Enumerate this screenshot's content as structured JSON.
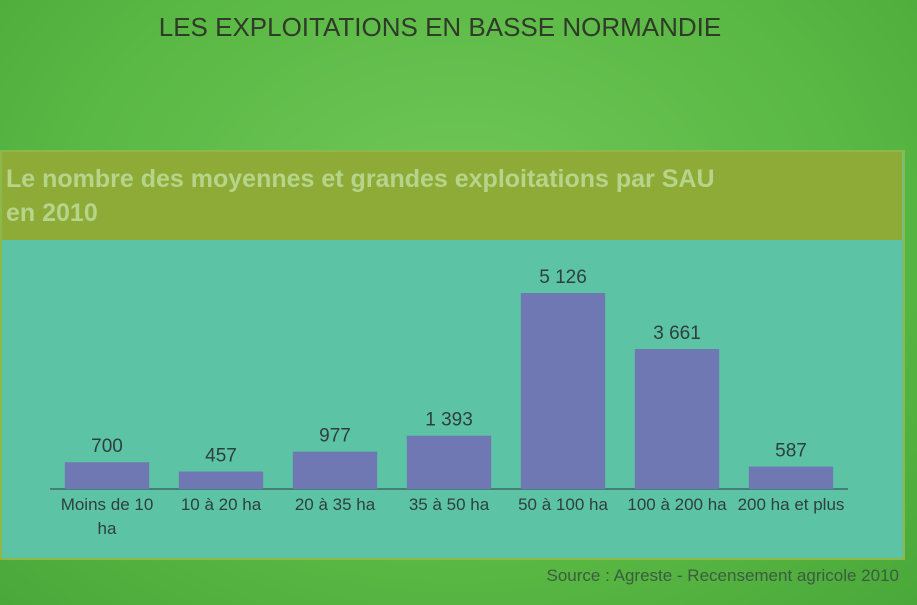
{
  "chart_data": {
    "type": "bar",
    "title": "LES EXPLOITATIONS EN BASSE NORMANDIE",
    "subtitle": "Le nombre des moyennes et grandes exploitations par SAU en 2010",
    "source": "Source : Agreste - Recensement agricole 2010",
    "categories": [
      "Moins de 10 ha",
      "10 à 20 ha",
      "20 à 35 ha",
      "35 à 50 ha",
      "50 à 100 ha",
      "100 à 200 ha",
      "200 ha et plus"
    ],
    "values": [
      700,
      457,
      977,
      1393,
      5126,
      3661,
      587
    ],
    "value_labels": [
      "700",
      "457",
      "977",
      "1 393",
      "5 126",
      "3 661",
      "587"
    ],
    "color": "#6f78b2"
  }
}
